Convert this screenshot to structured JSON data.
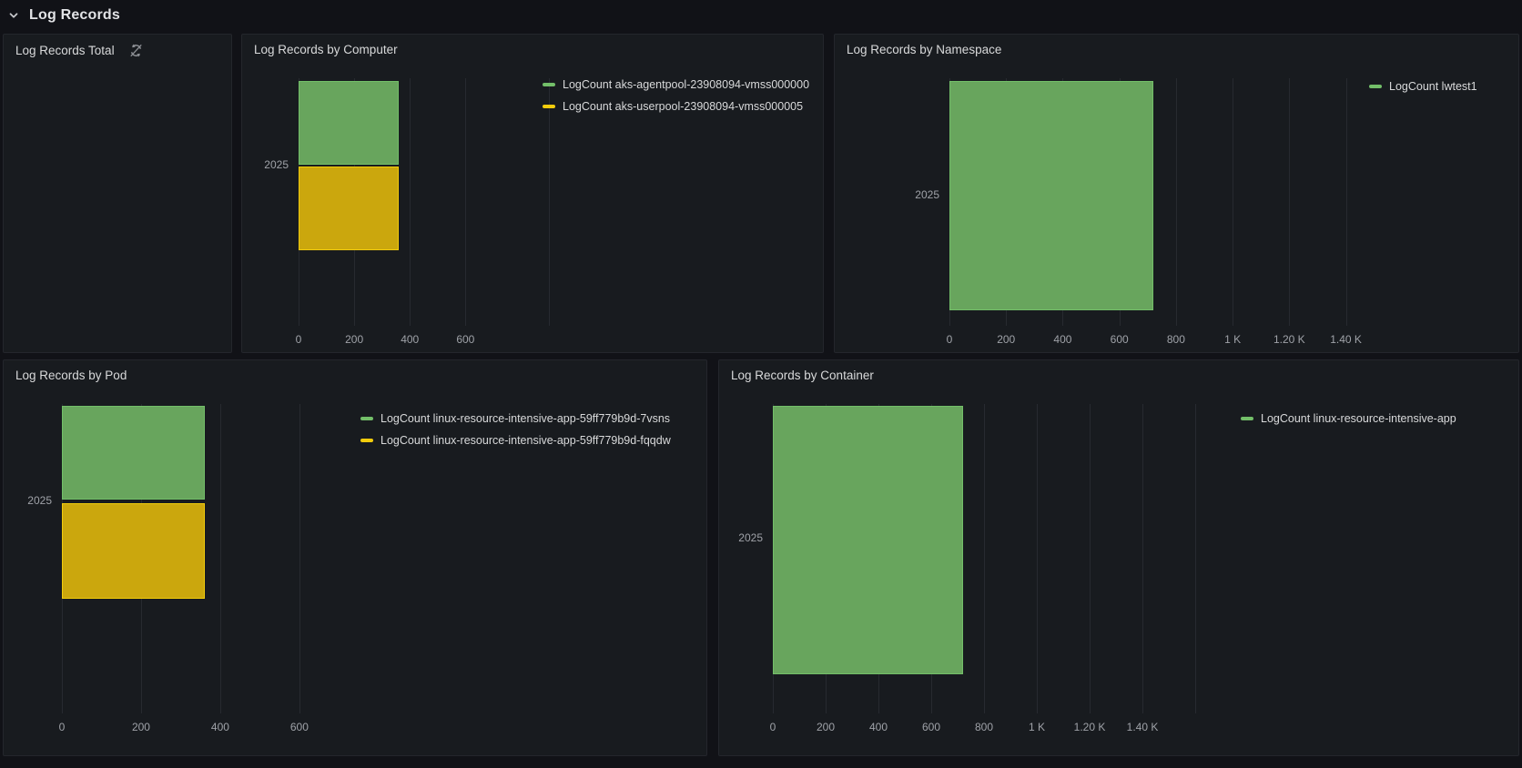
{
  "section": {
    "title": "Log Records"
  },
  "colors": {
    "page_bg": "#111217",
    "panel_bg": "#181b1f",
    "panel_border": "#24262c",
    "title_text": "#d8d9da",
    "axis_text": "#9fa2a8",
    "legend_text": "#d8d9da",
    "grid": "rgba(204,204,220,0.09)",
    "series": {
      "green": {
        "line": "#73BF69",
        "fill": "#68a55d"
      },
      "yellow": {
        "line": "#F2CC0C",
        "fill": "#cba70d"
      }
    }
  },
  "panels": [
    {
      "id": "total",
      "title": "Log Records Total",
      "status_icon": "sync-slash-icon"
    },
    {
      "id": "computer",
      "title": "Log Records by Computer"
    },
    {
      "id": "namespace",
      "title": "Log Records by Namespace"
    },
    {
      "id": "pod",
      "title": "Log Records by Pod"
    },
    {
      "id": "container",
      "title": "Log Records by Container"
    }
  ],
  "chart_data": [
    {
      "panel_id": "computer",
      "type": "bar",
      "orientation": "horizontal",
      "title": "Log Records by Computer",
      "categories": [
        "2025"
      ],
      "series": [
        {
          "name": "LogCount aks-agentpool-23908094-vmss000000",
          "color_key": "green",
          "values": [
            360
          ]
        },
        {
          "name": "LogCount aks-userpool-23908094-vmss000005",
          "color_key": "yellow",
          "values": [
            360
          ]
        }
      ],
      "xlabel": "",
      "ylabel": "",
      "xlim": [
        0,
        900
      ],
      "x_ticks": [
        {
          "value": 0,
          "label": "0"
        },
        {
          "value": 200,
          "label": "200"
        },
        {
          "value": 400,
          "label": "400"
        },
        {
          "value": 600,
          "label": "600"
        }
      ],
      "grid": true,
      "legend_position": "right-top"
    },
    {
      "panel_id": "namespace",
      "type": "bar",
      "orientation": "horizontal",
      "title": "Log Records by Namespace",
      "categories": [
        "2025"
      ],
      "series": [
        {
          "name": "LogCount lwtest1",
          "color_key": "green",
          "values": [
            720
          ]
        }
      ],
      "xlabel": "",
      "ylabel": "",
      "xlim": [
        0,
        1440
      ],
      "x_ticks": [
        {
          "value": 0,
          "label": "0"
        },
        {
          "value": 200,
          "label": "200"
        },
        {
          "value": 400,
          "label": "400"
        },
        {
          "value": 600,
          "label": "600"
        },
        {
          "value": 800,
          "label": "800"
        },
        {
          "value": 1000,
          "label": "1 K"
        },
        {
          "value": 1200,
          "label": "1.20 K"
        },
        {
          "value": 1400,
          "label": "1.40 K"
        }
      ],
      "grid": true,
      "legend_position": "right-top"
    },
    {
      "panel_id": "pod",
      "type": "bar",
      "orientation": "horizontal",
      "title": "Log Records by Pod",
      "categories": [
        "2025"
      ],
      "series": [
        {
          "name": "LogCount linux-resource-intensive-app-59ff779b9d-7vsns",
          "color_key": "green",
          "values": [
            360
          ]
        },
        {
          "name": "LogCount linux-resource-intensive-app-59ff779b9d-fqqdw",
          "color_key": "yellow",
          "values": [
            360
          ]
        }
      ],
      "xlabel": "",
      "ylabel": "",
      "xlim": [
        0,
        690
      ],
      "x_ticks": [
        {
          "value": 0,
          "label": "0"
        },
        {
          "value": 200,
          "label": "200"
        },
        {
          "value": 400,
          "label": "400"
        },
        {
          "value": 600,
          "label": "600"
        }
      ],
      "grid": true,
      "legend_position": "right-top"
    },
    {
      "panel_id": "container",
      "type": "bar",
      "orientation": "horizontal",
      "title": "Log Records by Container",
      "categories": [
        "2025"
      ],
      "series": [
        {
          "name": "LogCount linux-resource-intensive-app",
          "color_key": "green",
          "values": [
            720
          ]
        }
      ],
      "xlabel": "",
      "ylabel": "",
      "xlim": [
        0,
        1600
      ],
      "x_ticks": [
        {
          "value": 0,
          "label": "0"
        },
        {
          "value": 200,
          "label": "200"
        },
        {
          "value": 400,
          "label": "400"
        },
        {
          "value": 600,
          "label": "600"
        },
        {
          "value": 800,
          "label": "800"
        },
        {
          "value": 1000,
          "label": "1 K"
        },
        {
          "value": 1200,
          "label": "1.20 K"
        },
        {
          "value": 1400,
          "label": "1.40 K"
        }
      ],
      "grid": true,
      "legend_position": "right-top"
    }
  ]
}
